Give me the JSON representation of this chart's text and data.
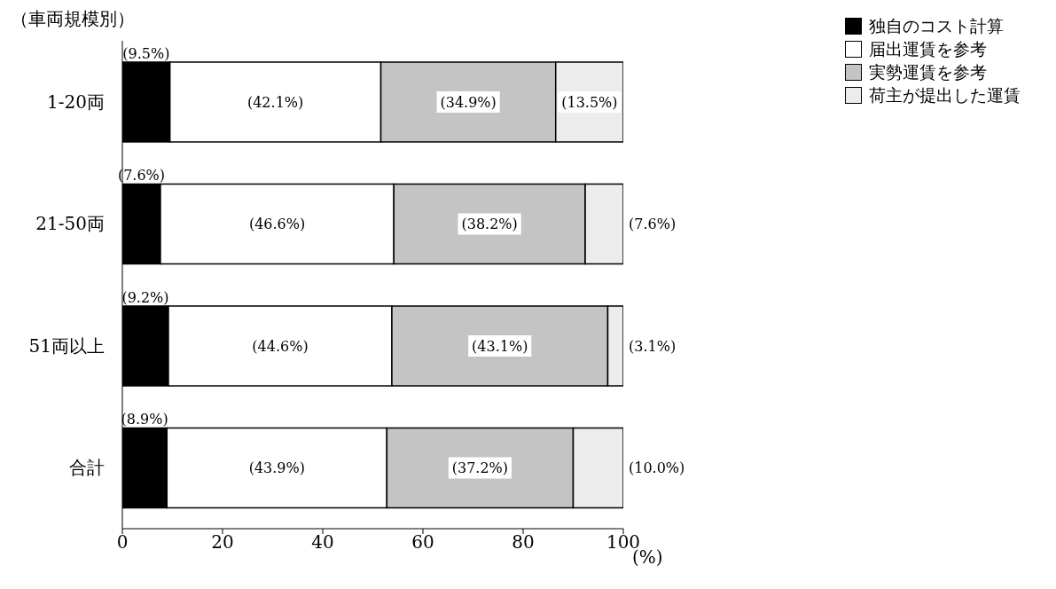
{
  "chart_data": {
    "type": "bar",
    "orientation": "horizontal",
    "stacked": true,
    "ylabel": "（車両規模別）",
    "xlabel": "(%)",
    "categories": [
      "1-20両",
      "21-50両",
      "51両以上",
      "合計"
    ],
    "series": [
      {
        "name": "独自のコスト計算",
        "color": "#000000",
        "values": [
          9.5,
          7.6,
          9.2,
          8.9
        ],
        "value_labels": [
          "(9.5%)",
          "(7.6%)",
          "(9.2%)",
          "(8.9%)"
        ]
      },
      {
        "name": "届出運賃を参考",
        "color": "#ffffff",
        "values": [
          42.1,
          46.6,
          44.6,
          43.9
        ],
        "value_labels": [
          "(42.1%)",
          "(46.6%)",
          "(44.6%)",
          "(43.9%)"
        ]
      },
      {
        "name": "実勢運賃を参考",
        "color": "#c4c4c4",
        "values": [
          34.9,
          38.2,
          43.1,
          37.2
        ],
        "value_labels": [
          "(34.9%)",
          "(38.2%)",
          "(43.1%)",
          "(37.2%)"
        ]
      },
      {
        "name": "荷主が提出した運賃",
        "color": "#ececec",
        "values": [
          13.5,
          7.6,
          3.1,
          10.0
        ],
        "value_labels": [
          "(13.5%)",
          "(7.6%)",
          "(3.1%)",
          "(10.0%)"
        ]
      }
    ],
    "xlim": [
      0,
      100
    ],
    "xticks": [
      0,
      20,
      40,
      60,
      80,
      100
    ],
    "grid": false,
    "legend": "top right"
  }
}
